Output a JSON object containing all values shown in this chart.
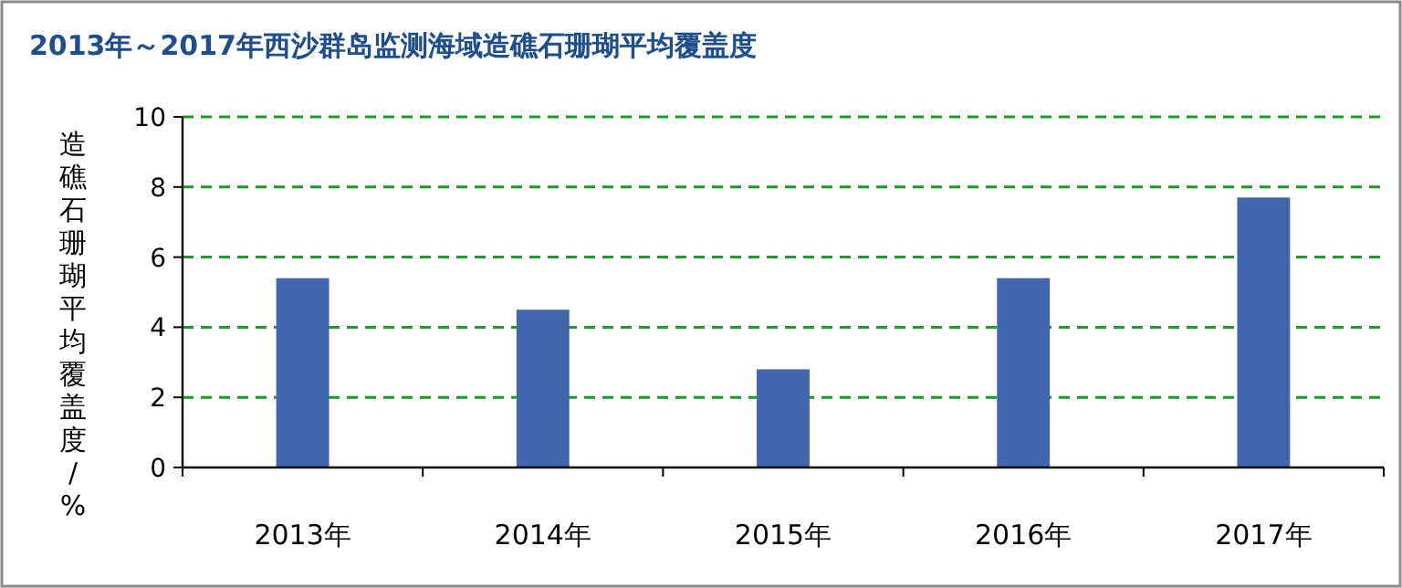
{
  "chart_data": {
    "type": "bar",
    "title": "2013年～2017年西沙群岛监测海域造礁石珊瑚平均覆盖度",
    "ylabel": "造礁石珊瑚平均覆盖度/%",
    "categories": [
      "2013年",
      "2014年",
      "2015年",
      "2016年",
      "2017年"
    ],
    "values": [
      5.4,
      4.5,
      2.8,
      5.4,
      7.7
    ],
    "color": "#4166ae",
    "ylim": [
      0,
      10
    ],
    "yticks": [
      0,
      2,
      4,
      6,
      8,
      10
    ],
    "grid": "y"
  }
}
